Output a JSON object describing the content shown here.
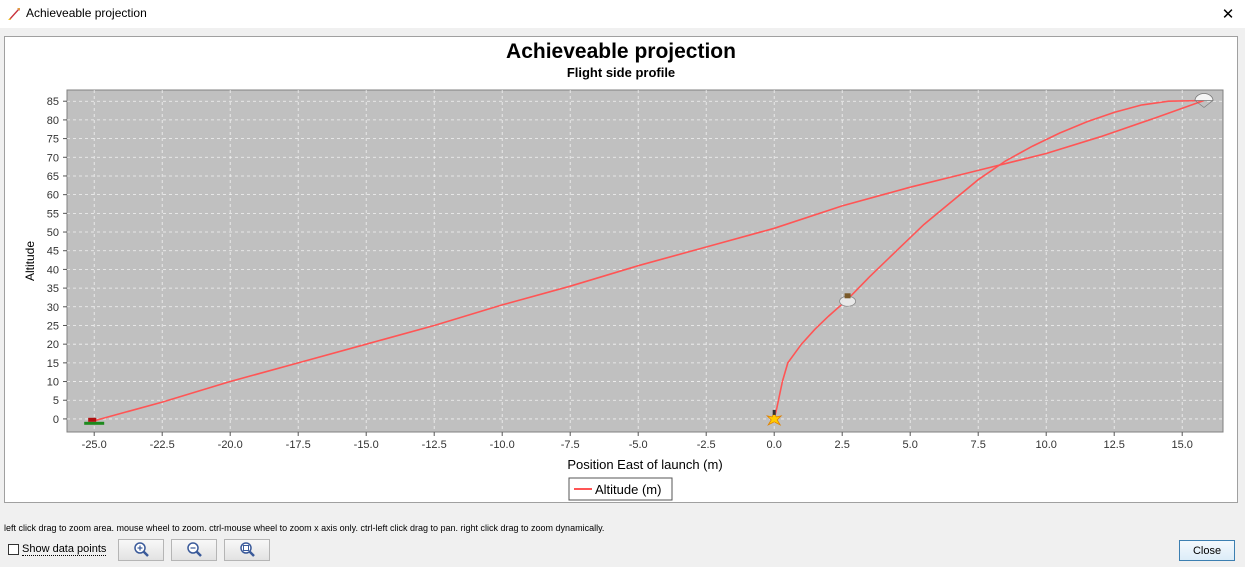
{
  "window": {
    "title": "Achieveable projection",
    "close_glyph": "✕"
  },
  "chart_data": {
    "type": "line",
    "title": "Achieveable projection",
    "subtitle": "Flight side profile",
    "xlabel": "Position East of launch (m)",
    "ylabel": "Altitude",
    "xlim": [
      -26.0,
      16.5
    ],
    "ylim": [
      -3.5,
      88
    ],
    "x_ticks": [
      -25.0,
      -22.5,
      -20.0,
      -17.5,
      -15.0,
      -12.5,
      -10.0,
      -7.5,
      -5.0,
      -2.5,
      0.0,
      2.5,
      5.0,
      7.5,
      10.0,
      12.5,
      15.0
    ],
    "y_ticks": [
      0,
      5,
      10,
      15,
      20,
      25,
      30,
      35,
      40,
      45,
      50,
      55,
      60,
      65,
      70,
      75,
      80,
      85
    ],
    "grid": true,
    "plot_background": "#c0c0c0",
    "line_color": "#ff5555",
    "legend_position": "bottom-center",
    "series": [
      {
        "name": "Altitude (m)",
        "ascent": [
          {
            "x": 0.0,
            "y": 0
          },
          {
            "x": 0.1,
            "y": 3
          },
          {
            "x": 0.3,
            "y": 10
          },
          {
            "x": 0.5,
            "y": 15
          },
          {
            "x": 1.0,
            "y": 20
          },
          {
            "x": 1.5,
            "y": 24
          },
          {
            "x": 2.0,
            "y": 27.5
          },
          {
            "x": 2.7,
            "y": 32
          },
          {
            "x": 3.5,
            "y": 38
          },
          {
            "x": 4.5,
            "y": 45
          },
          {
            "x": 5.5,
            "y": 52
          },
          {
            "x": 6.5,
            "y": 58
          },
          {
            "x": 7.5,
            "y": 64
          },
          {
            "x": 8.5,
            "y": 69
          },
          {
            "x": 9.5,
            "y": 73
          },
          {
            "x": 10.5,
            "y": 76.5
          },
          {
            "x": 11.5,
            "y": 79.5
          },
          {
            "x": 12.5,
            "y": 82
          },
          {
            "x": 13.5,
            "y": 84
          },
          {
            "x": 14.5,
            "y": 85
          },
          {
            "x": 15.8,
            "y": 85.2
          }
        ],
        "descent": [
          {
            "x": 15.8,
            "y": 85.2
          },
          {
            "x": 14.0,
            "y": 80.5
          },
          {
            "x": 12.0,
            "y": 75.5
          },
          {
            "x": 10.0,
            "y": 71
          },
          {
            "x": 7.5,
            "y": 66.5
          },
          {
            "x": 5.0,
            "y": 62
          },
          {
            "x": 2.5,
            "y": 57
          },
          {
            "x": 0.0,
            "y": 51
          },
          {
            "x": -2.5,
            "y": 46
          },
          {
            "x": -5.0,
            "y": 41
          },
          {
            "x": -7.5,
            "y": 35.5
          },
          {
            "x": -10.0,
            "y": 30.5
          },
          {
            "x": -12.5,
            "y": 25
          },
          {
            "x": -15.0,
            "y": 20
          },
          {
            "x": -17.5,
            "y": 15
          },
          {
            "x": -20.0,
            "y": 10
          },
          {
            "x": -22.5,
            "y": 4.5
          },
          {
            "x": -24.5,
            "y": 0.5
          },
          {
            "x": -25.0,
            "y": -0.5
          }
        ]
      }
    ],
    "markers": [
      {
        "x": 0.0,
        "y": 0,
        "icon": "launch-burst-icon"
      },
      {
        "x": 2.7,
        "y": 32,
        "icon": "burnout-cloud-icon"
      },
      {
        "x": 15.8,
        "y": 85.2,
        "icon": "apogee-parachute-icon"
      },
      {
        "x": -25.0,
        "y": -0.5,
        "icon": "landing-marker-icon"
      }
    ]
  },
  "footer": {
    "hint": "left click drag to zoom area. mouse wheel to zoom. ctrl-mouse wheel to zoom x axis only. ctrl-left click drag to pan.  right click drag to zoom dynamically.",
    "show_data_points_label": "Show data points",
    "zoom_buttons": [
      "zoom-in-icon",
      "zoom-out-icon",
      "zoom-reset-icon"
    ],
    "close_label": "Close"
  }
}
